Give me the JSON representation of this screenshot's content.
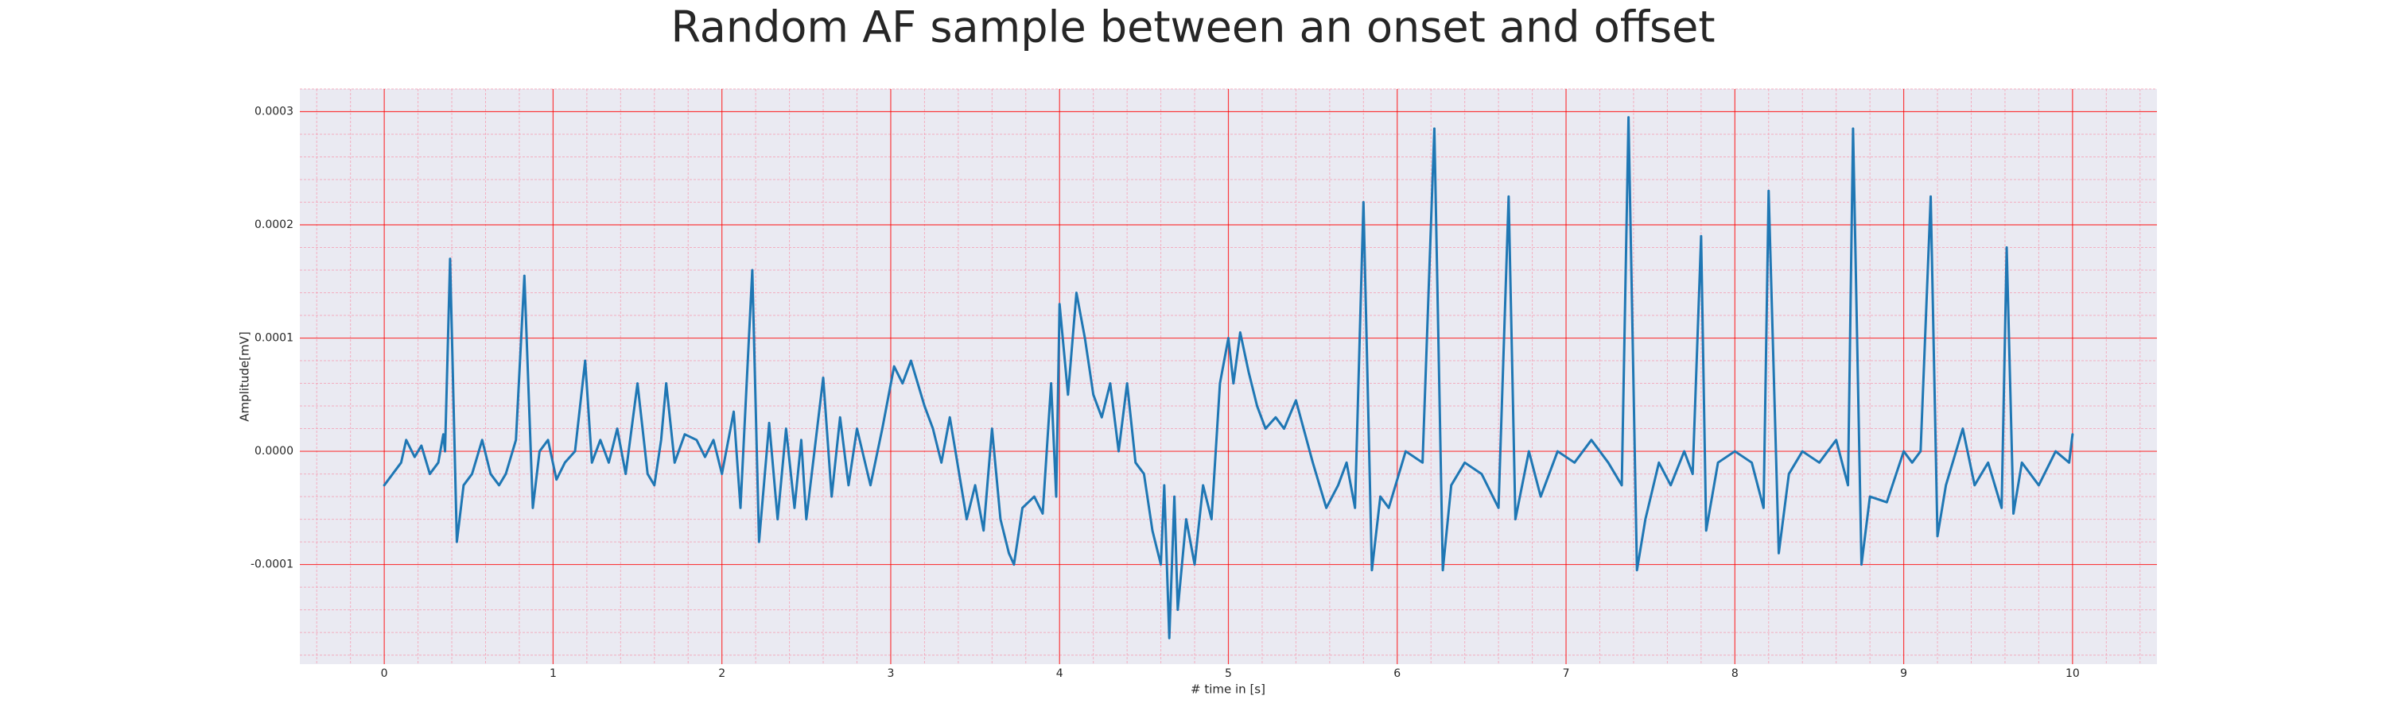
{
  "chart_data": {
    "type": "line",
    "title": "Random AF sample between an onset and offset",
    "xlabel": "# time in [s]",
    "ylabel": "Amplitude[mV]",
    "xlim": [
      -0.5,
      10.5
    ],
    "ylim": [
      -0.000188,
      0.00032
    ],
    "xticks": [
      0,
      1,
      2,
      3,
      4,
      5,
      6,
      7,
      8,
      9,
      10
    ],
    "yticks": [
      -0.0001,
      {
        "value": 0,
        "label": "0.0000"
      },
      0.0001,
      0.0002,
      0.0003
    ],
    "grid": true,
    "grid_color": "#ff0000",
    "minor_grid": true,
    "minor_grid_color": "#f4a0b4",
    "background": "#eaeaf2",
    "x": [
      0,
      0.1,
      0.13,
      0.18,
      0.22,
      0.27,
      0.32,
      0.35,
      0.36,
      0.39,
      0.43,
      0.47,
      0.52,
      0.58,
      0.63,
      0.68,
      0.72,
      0.78,
      0.83,
      0.88,
      0.92,
      0.97,
      1.02,
      1.07,
      1.13,
      1.19,
      1.23,
      1.28,
      1.33,
      1.38,
      1.43,
      1.5,
      1.56,
      1.6,
      1.64,
      1.67,
      1.72,
      1.78,
      1.85,
      1.9,
      1.95,
      2,
      2.07,
      2.11,
      2.18,
      2.22,
      2.28,
      2.33,
      2.38,
      2.43,
      2.47,
      2.5,
      2.6,
      2.65,
      2.7,
      2.75,
      2.8,
      2.88,
      2.95,
      3.02,
      3.07,
      3.12,
      3.2,
      3.25,
      3.3,
      3.35,
      3.45,
      3.5,
      3.55,
      3.6,
      3.65,
      3.7,
      3.73,
      3.78,
      3.85,
      3.9,
      3.95,
      3.98,
      4,
      4.05,
      4.1,
      4.15,
      4.2,
      4.25,
      4.3,
      4.35,
      4.4,
      4.45,
      4.5,
      4.55,
      4.6,
      4.62,
      4.65,
      4.68,
      4.7,
      4.75,
      4.8,
      4.85,
      4.9,
      4.95,
      5,
      5.03,
      5.07,
      5.12,
      5.17,
      5.22,
      5.28,
      5.33,
      5.4,
      5.5,
      5.58,
      5.65,
      5.7,
      5.75,
      5.8,
      5.85,
      5.9,
      5.95,
      6.05,
      6.15,
      6.22,
      6.27,
      6.32,
      6.4,
      6.5,
      6.6,
      6.66,
      6.7,
      6.78,
      6.85,
      6.95,
      7.05,
      7.15,
      7.25,
      7.33,
      7.37,
      7.42,
      7.47,
      7.55,
      7.62,
      7.7,
      7.75,
      7.8,
      7.83,
      7.9,
      8,
      8.1,
      8.17,
      8.2,
      8.26,
      8.32,
      8.4,
      8.5,
      8.6,
      8.67,
      8.7,
      8.75,
      8.8,
      8.9,
      9,
      9.05,
      9.1,
      9.16,
      9.2,
      9.25,
      9.35,
      9.42,
      9.5,
      9.58,
      9.61,
      9.65,
      9.7,
      9.8,
      9.9,
      9.98,
      10
    ],
    "series": [
      {
        "color": "#1f77b4",
        "values": [
          -3e-05,
          -1e-05,
          1e-05,
          -5e-06,
          5e-06,
          -2e-05,
          -1e-05,
          1.5e-05,
          0,
          0.00017,
          -8e-05,
          -3e-05,
          -2e-05,
          1e-05,
          -2e-05,
          -3e-05,
          -2e-05,
          1e-05,
          0.000155,
          -5e-05,
          0,
          1e-05,
          -2.5e-05,
          -1e-05,
          0,
          8e-05,
          -1e-05,
          1e-05,
          -1e-05,
          2e-05,
          -2e-05,
          6e-05,
          -2e-05,
          -3e-05,
          1e-05,
          6e-05,
          -1e-05,
          1.5e-05,
          1e-05,
          -5e-06,
          1e-05,
          -2e-05,
          3.5e-05,
          -5e-05,
          0.00016,
          -8e-05,
          2.5e-05,
          -6e-05,
          2e-05,
          -5e-05,
          1e-05,
          -6e-05,
          6.5e-05,
          -4e-05,
          3e-05,
          -3e-05,
          2e-05,
          -3e-05,
          2e-05,
          7.5e-05,
          6e-05,
          8e-05,
          4e-05,
          2e-05,
          -1e-05,
          3e-05,
          -6e-05,
          -3e-05,
          -7e-05,
          2e-05,
          -6e-05,
          -9e-05,
          -0.0001,
          -5e-05,
          -4e-05,
          -5.5e-05,
          6e-05,
          -4e-05,
          0.00013,
          5e-05,
          0.00014,
          0.0001,
          5e-05,
          3e-05,
          6e-05,
          0,
          6e-05,
          -1e-05,
          -2e-05,
          -7e-05,
          -0.0001,
          -3e-05,
          -0.000165,
          -4e-05,
          -0.00014,
          -6e-05,
          -0.0001,
          -3e-05,
          -6e-05,
          6e-05,
          0.0001,
          6e-05,
          0.000105,
          7e-05,
          4e-05,
          2e-05,
          3e-05,
          2e-05,
          4.5e-05,
          -1e-05,
          -5e-05,
          -3e-05,
          -1e-05,
          -5e-05,
          0.00022,
          -0.000105,
          -4e-05,
          -5e-05,
          0,
          -1e-05,
          0.000285,
          -0.000105,
          -3e-05,
          -1e-05,
          -2e-05,
          -5e-05,
          0.000225,
          -6e-05,
          0,
          -4e-05,
          0,
          -1e-05,
          1e-05,
          -1e-05,
          -3e-05,
          0.000295,
          -0.000105,
          -6e-05,
          -1e-05,
          -3e-05,
          0,
          -2e-05,
          0.00019,
          -7e-05,
          -1e-05,
          0,
          -1e-05,
          -5e-05,
          0.00023,
          -9e-05,
          -2e-05,
          0,
          -1e-05,
          1e-05,
          -3e-05,
          0.000285,
          -0.0001,
          -4e-05,
          -4.5e-05,
          0,
          -1e-05,
          0,
          0.000225,
          -7.5e-05,
          -3e-05,
          2e-05,
          -3e-05,
          -1e-05,
          -5e-05,
          0.00018,
          -5.5e-05,
          -1e-05,
          -3e-05,
          0,
          -1e-05,
          1.5e-05
        ]
      }
    ]
  }
}
